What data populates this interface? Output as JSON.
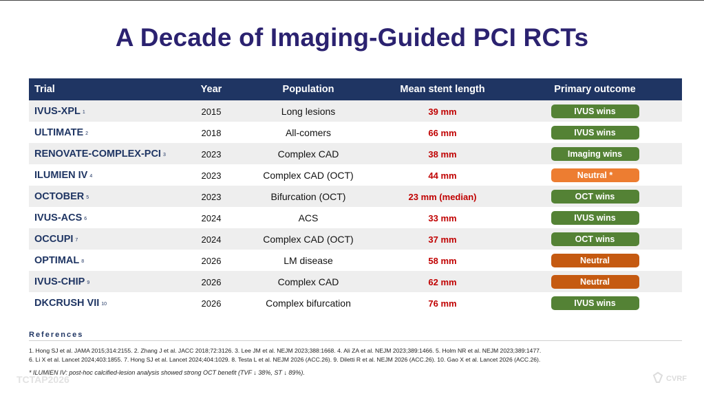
{
  "title": "A Decade of Imaging-Guided PCI RCTs",
  "table": {
    "headers": [
      "Trial",
      "Year",
      "Population",
      "Mean stent length",
      "Primary outcome"
    ],
    "rows": [
      {
        "trial": "IVUS-XPL",
        "ref": "1",
        "year": "2015",
        "population": "Long lesions",
        "length": "39 mm",
        "outcome": "IVUS wins",
        "color": "#548235"
      },
      {
        "trial": "ULTIMATE",
        "ref": "2",
        "year": "2018",
        "population": "All-comers",
        "length": "66 mm",
        "outcome": "IVUS wins",
        "color": "#548235"
      },
      {
        "trial": "RENOVATE-COMPLEX-PCI",
        "ref": "3",
        "year": "2023",
        "population": "Complex CAD",
        "length": "38 mm",
        "outcome": "Imaging wins",
        "color": "#548235"
      },
      {
        "trial": "ILUMIEN IV",
        "ref": "4",
        "year": "2023",
        "population": "Complex CAD (OCT)",
        "length": "44 mm",
        "outcome": "Neutral *",
        "color": "#ed7d31"
      },
      {
        "trial": "OCTOBER",
        "ref": "5",
        "year": "2023",
        "population": "Bifurcation (OCT)",
        "length": "23 mm (median)",
        "outcome": "OCT wins",
        "color": "#548235"
      },
      {
        "trial": "IVUS-ACS",
        "ref": "6",
        "year": "2024",
        "population": "ACS",
        "length": "33 mm",
        "outcome": "IVUS wins",
        "color": "#548235"
      },
      {
        "trial": "OCCUPI",
        "ref": "7",
        "year": "2024",
        "population": "Complex CAD (OCT)",
        "length": "37 mm",
        "outcome": "OCT wins",
        "color": "#548235"
      },
      {
        "trial": "OPTIMAL",
        "ref": "8",
        "year": "2026",
        "population": "LM disease",
        "length": "58 mm",
        "outcome": "Neutral",
        "color": "#c55a11"
      },
      {
        "trial": "IVUS-CHIP",
        "ref": "9",
        "year": "2026",
        "population": "Complex CAD",
        "length": "62 mm",
        "outcome": "Neutral",
        "color": "#c55a11"
      },
      {
        "trial": "DKCRUSH VII",
        "ref": "10",
        "year": "2026",
        "population": "Complex bifurcation",
        "length": "76 mm",
        "outcome": "IVUS wins",
        "color": "#548235"
      }
    ]
  },
  "references": {
    "heading": "References",
    "line1": "1. Hong SJ et al. JAMA 2015;314:2155.   2. Zhang J et al. JACC 2018;72:3126.   3. Lee JM et al. NEJM 2023;388:1668.   4. Ali ZA et al. NEJM 2023;389:1466.   5. Holm NR et al. NEJM 2023;389:1477.",
    "line2": "6. Li X et al. Lancet 2024;403:1855.   7. Hong SJ et al. Lancet 2024;404:1029.   8. Testa L et al. NEJM 2026 (ACC.26).   9. Diletti R et al. NEJM 2026 (ACC.26).   10. Gao X et al. Lancet 2026 (ACC.26).",
    "note": "* ILUMIEN IV: post-hoc calcified-lesion analysis showed strong OCT benefit (TVF ↓ 38%, ST ↓ 89%)."
  },
  "footer": {
    "brand": "TCTAP2026",
    "logo": "CVRF"
  }
}
